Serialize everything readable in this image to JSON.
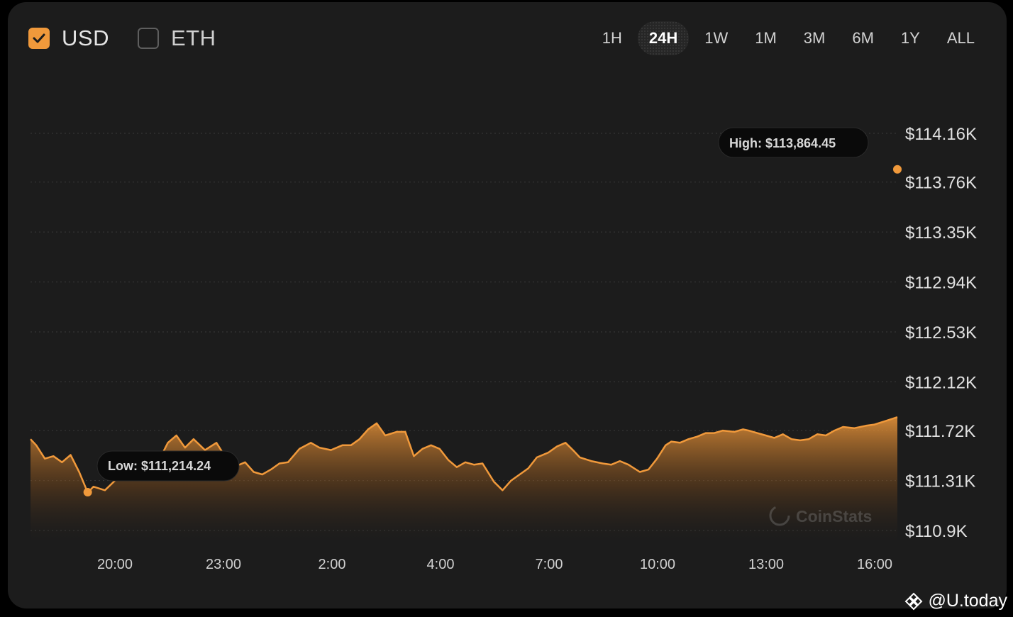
{
  "currency_toggles": [
    {
      "label": "USD",
      "checked": true
    },
    {
      "label": "ETH",
      "checked": false
    }
  ],
  "time_ranges": [
    "1H",
    "24H",
    "1W",
    "1M",
    "3M",
    "6M",
    "1Y",
    "ALL"
  ],
  "active_range": "24H",
  "tooltips": {
    "low": "Low: $111,214.24",
    "high": "High: $113,864.45"
  },
  "branding": {
    "chart_watermark": "CoinStats",
    "site_watermark": "@U.today"
  },
  "colors": {
    "accent": "#f0993b",
    "background": "#1c1c1c",
    "text": "#e4e4e4"
  },
  "chart_data": {
    "type": "area",
    "xlabel": "",
    "ylabel": "",
    "x_tick_labels": [
      "20:00",
      "23:00",
      "2:00",
      "4:00",
      "7:00",
      "10:00",
      "13:00",
      "16:00"
    ],
    "y_tick_labels": [
      "$114.16K",
      "$113.76K",
      "$113.35K",
      "$112.94K",
      "$112.53K",
      "$112.12K",
      "$111.72K",
      "$111.31K",
      "$110.9K"
    ],
    "y_tick_values": [
      114160,
      113760,
      113350,
      112940,
      112530,
      112120,
      111720,
      111310,
      110900
    ],
    "ylim": [
      110900,
      114160
    ],
    "grid": true,
    "low": 111214.24,
    "high": 113864.45,
    "series": [
      {
        "points": [
          [
            17.8,
            111650
          ],
          [
            18.0,
            111600
          ],
          [
            18.3,
            111490
          ],
          [
            18.6,
            111510
          ],
          [
            18.9,
            111460
          ],
          [
            19.2,
            111520
          ],
          [
            19.5,
            111380
          ],
          [
            19.8,
            111210
          ],
          [
            20.0,
            111260
          ],
          [
            20.4,
            111230
          ],
          [
            20.8,
            111320
          ],
          [
            21.1,
            111360
          ],
          [
            21.5,
            111410
          ],
          [
            21.9,
            111350
          ],
          [
            22.3,
            111480
          ],
          [
            22.6,
            111620
          ],
          [
            22.9,
            111680
          ],
          [
            23.2,
            111580
          ],
          [
            23.5,
            111650
          ],
          [
            23.9,
            111560
          ],
          [
            24.3,
            111620
          ],
          [
            24.7,
            111470
          ],
          [
            25.0,
            111430
          ],
          [
            25.3,
            111460
          ],
          [
            25.6,
            111380
          ],
          [
            25.9,
            111360
          ],
          [
            26.2,
            111400
          ],
          [
            26.5,
            111450
          ],
          [
            26.8,
            111460
          ],
          [
            27.2,
            111570
          ],
          [
            27.6,
            111620
          ],
          [
            27.9,
            111580
          ],
          [
            28.3,
            111560
          ],
          [
            28.7,
            111600
          ],
          [
            29.0,
            111600
          ],
          [
            29.3,
            111650
          ],
          [
            29.6,
            111730
          ],
          [
            29.9,
            111780
          ],
          [
            30.2,
            111680
          ],
          [
            30.6,
            111710
          ],
          [
            30.9,
            111710
          ],
          [
            31.2,
            111510
          ],
          [
            31.5,
            111570
          ],
          [
            31.8,
            111600
          ],
          [
            32.1,
            111570
          ],
          [
            32.4,
            111480
          ],
          [
            32.7,
            111420
          ],
          [
            33.0,
            111460
          ],
          [
            33.3,
            111440
          ],
          [
            33.6,
            111450
          ],
          [
            34.0,
            111300
          ],
          [
            34.3,
            111230
          ],
          [
            34.6,
            111310
          ],
          [
            34.9,
            111360
          ],
          [
            35.2,
            111410
          ],
          [
            35.5,
            111500
          ],
          [
            35.9,
            111540
          ],
          [
            36.2,
            111590
          ],
          [
            36.5,
            111620
          ],
          [
            36.8,
            111550
          ],
          [
            37.0,
            111500
          ],
          [
            37.4,
            111470
          ],
          [
            37.8,
            111450
          ],
          [
            38.1,
            111440
          ],
          [
            38.4,
            111470
          ],
          [
            38.7,
            111440
          ],
          [
            39.1,
            111380
          ],
          [
            39.4,
            111400
          ],
          [
            39.7,
            111490
          ],
          [
            40.0,
            111600
          ],
          [
            40.2,
            111630
          ],
          [
            40.5,
            111620
          ],
          [
            40.8,
            111650
          ],
          [
            41.1,
            111670
          ],
          [
            41.4,
            111700
          ],
          [
            41.7,
            111700
          ],
          [
            42.0,
            111720
          ],
          [
            42.4,
            111710
          ],
          [
            42.7,
            111730
          ],
          [
            42.9,
            111720
          ],
          [
            43.2,
            111700
          ],
          [
            43.5,
            111680
          ],
          [
            43.8,
            111660
          ],
          [
            44.1,
            111690
          ],
          [
            44.4,
            111650
          ],
          [
            44.7,
            111640
          ],
          [
            45.0,
            111650
          ],
          [
            45.3,
            111690
          ],
          [
            45.6,
            111680
          ],
          [
            45.9,
            111720
          ],
          [
            46.2,
            111750
          ],
          [
            46.6,
            111740
          ],
          [
            47.0,
            111760
          ],
          [
            47.3,
            111770
          ],
          [
            47.7,
            111800
          ],
          [
            48.1,
            111830
          ]
        ]
      }
    ]
  }
}
